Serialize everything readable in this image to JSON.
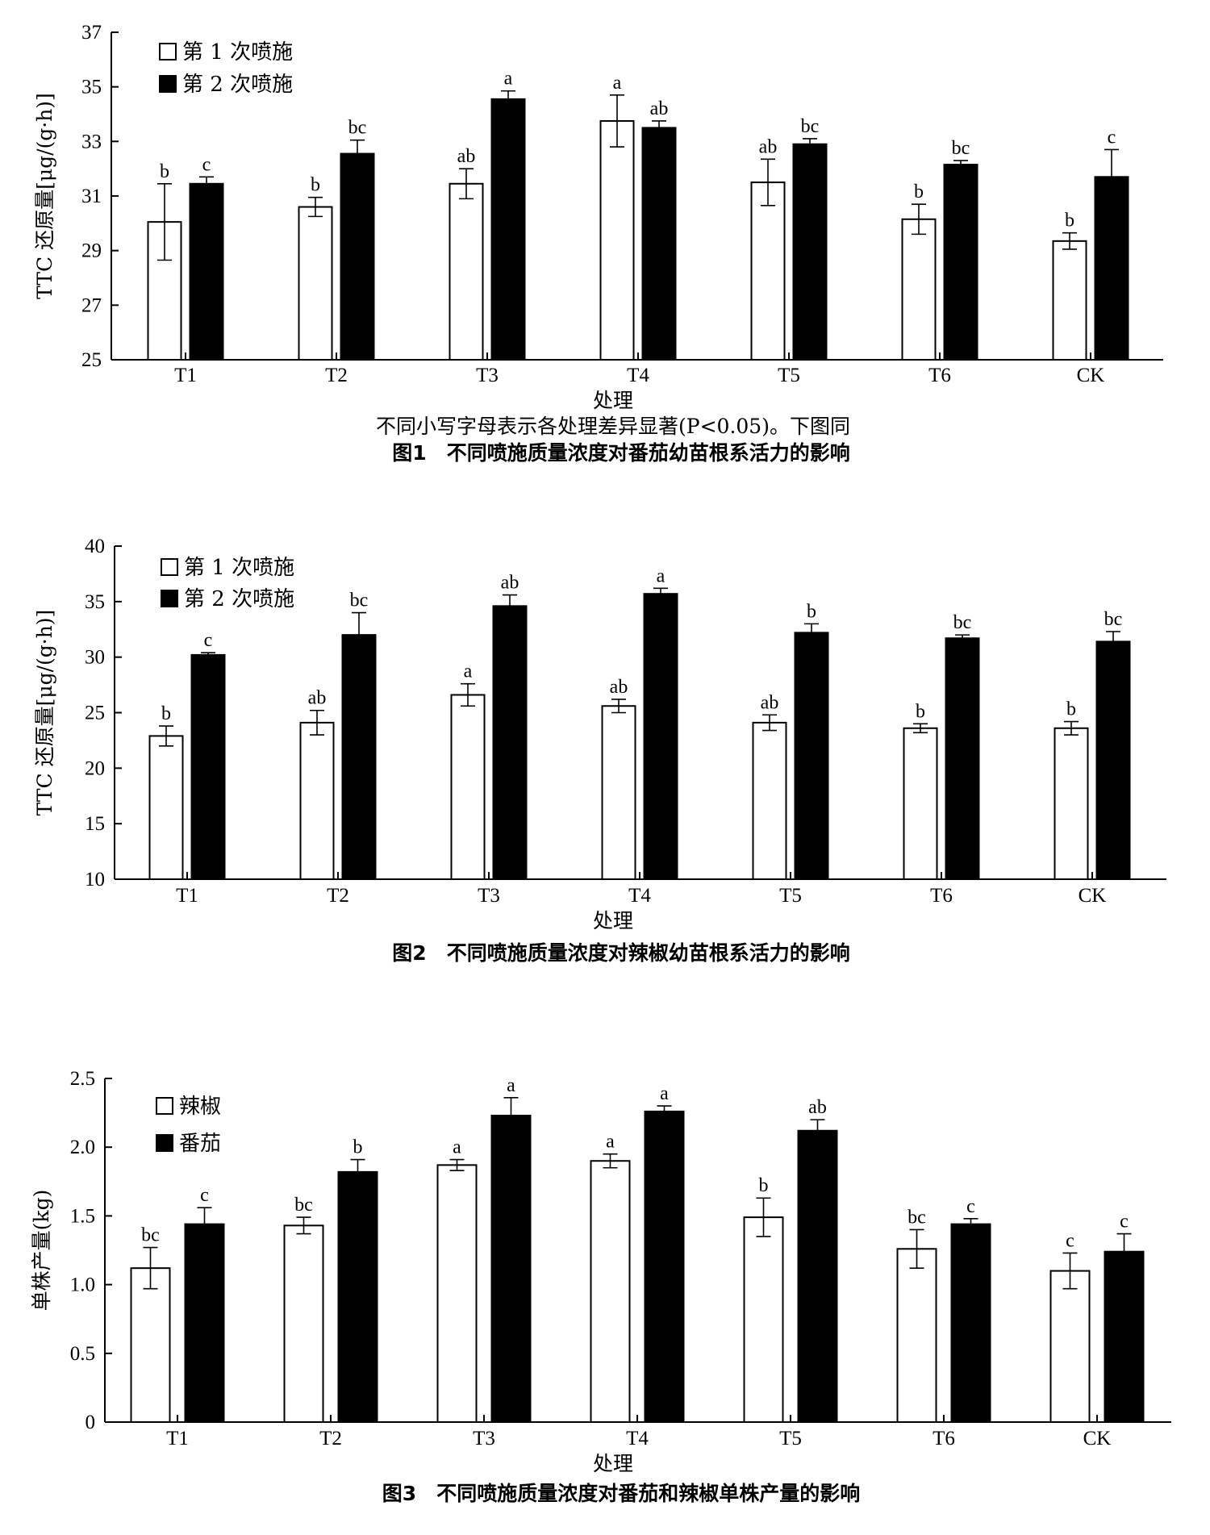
{
  "chart_data": [
    {
      "type": "bar",
      "categories": [
        "T1",
        "T2",
        "T3",
        "T4",
        "T5",
        "T6",
        "CK"
      ],
      "ylabel": "TTC 还原量[μg/(g·h)]",
      "xlabel": "处理",
      "ylim": [
        25,
        37
      ],
      "yticks": [
        25,
        27,
        29,
        31,
        33,
        35,
        37
      ],
      "legend_position": "top-left",
      "series": [
        {
          "name": "第 1 次喷施",
          "fill": "#ffffff",
          "values": [
            30.05,
            30.6,
            31.45,
            33.75,
            31.5,
            30.15,
            29.35
          ],
          "errors": [
            1.4,
            0.35,
            0.55,
            0.95,
            0.85,
            0.55,
            0.3
          ],
          "labels": [
            "b",
            "b",
            "ab",
            "a",
            "ab",
            "b",
            "b"
          ]
        },
        {
          "name": "第 2 次喷施",
          "fill": "#000000",
          "values": [
            31.45,
            32.55,
            34.55,
            33.5,
            32.9,
            32.15,
            31.7
          ],
          "errors": [
            0.25,
            0.5,
            0.3,
            0.25,
            0.2,
            0.15,
            1.0
          ],
          "labels": [
            "c",
            "bc",
            "a",
            "ab",
            "bc",
            "bc",
            "c"
          ]
        }
      ],
      "note": "不同小写字母表示各处理差异显著(P<0.05)。下图同",
      "caption": "图1　不同喷施质量浓度对番茄幼苗根系活力的影响"
    },
    {
      "type": "bar",
      "categories": [
        "T1",
        "T2",
        "T3",
        "T4",
        "T5",
        "T6",
        "CK"
      ],
      "ylabel": "TTC 还原量[μg/(g·h)]",
      "xlabel": "处理",
      "ylim": [
        10,
        40
      ],
      "yticks": [
        10,
        15,
        20,
        25,
        30,
        35,
        40
      ],
      "legend_position": "top-left",
      "series": [
        {
          "name": "第 1 次喷施",
          "fill": "#ffffff",
          "values": [
            22.9,
            24.1,
            26.6,
            25.6,
            24.1,
            23.6,
            23.6
          ],
          "errors": [
            0.9,
            1.1,
            1.0,
            0.6,
            0.7,
            0.4,
            0.6
          ],
          "labels": [
            "b",
            "ab",
            "a",
            "ab",
            "ab",
            "b",
            "b"
          ]
        },
        {
          "name": "第 2 次喷施",
          "fill": "#000000",
          "values": [
            30.2,
            32.0,
            34.6,
            35.7,
            32.2,
            31.7,
            31.4
          ],
          "errors": [
            0.2,
            2.0,
            1.0,
            0.5,
            0.8,
            0.3,
            0.9
          ],
          "labels": [
            "c",
            "bc",
            "ab",
            "a",
            "b",
            "bc",
            "bc"
          ]
        }
      ],
      "note": "",
      "caption": "图2　不同喷施质量浓度对辣椒幼苗根系活力的影响"
    },
    {
      "type": "bar",
      "categories": [
        "T1",
        "T2",
        "T3",
        "T4",
        "T5",
        "T6",
        "CK"
      ],
      "ylabel": "单株产量(kg)",
      "xlabel": "处理",
      "ylim": [
        0,
        2.5
      ],
      "yticks": [
        0,
        0.5,
        1.0,
        1.5,
        2.0,
        2.5
      ],
      "ytick_labels": [
        "0",
        "0.5",
        "1.0",
        "1.5",
        "2.0",
        "2.5"
      ],
      "legend_position": "top-left",
      "series": [
        {
          "name": "辣椒",
          "fill": "#ffffff",
          "values": [
            1.12,
            1.43,
            1.87,
            1.9,
            1.49,
            1.26,
            1.1
          ],
          "errors": [
            0.15,
            0.06,
            0.04,
            0.05,
            0.14,
            0.14,
            0.13
          ],
          "labels": [
            "bc",
            "bc",
            "a",
            "a",
            "b",
            "bc",
            "c"
          ]
        },
        {
          "name": "番茄",
          "fill": "#000000",
          "values": [
            1.44,
            1.82,
            2.23,
            2.26,
            2.12,
            1.44,
            1.24
          ],
          "errors": [
            0.12,
            0.09,
            0.13,
            0.04,
            0.08,
            0.04,
            0.13
          ],
          "labels": [
            "c",
            "b",
            "a",
            "a",
            "ab",
            "c",
            "c"
          ]
        }
      ],
      "note": "",
      "caption": "图3　不同喷施质量浓度对番茄和辣椒单株产量的影响"
    }
  ]
}
